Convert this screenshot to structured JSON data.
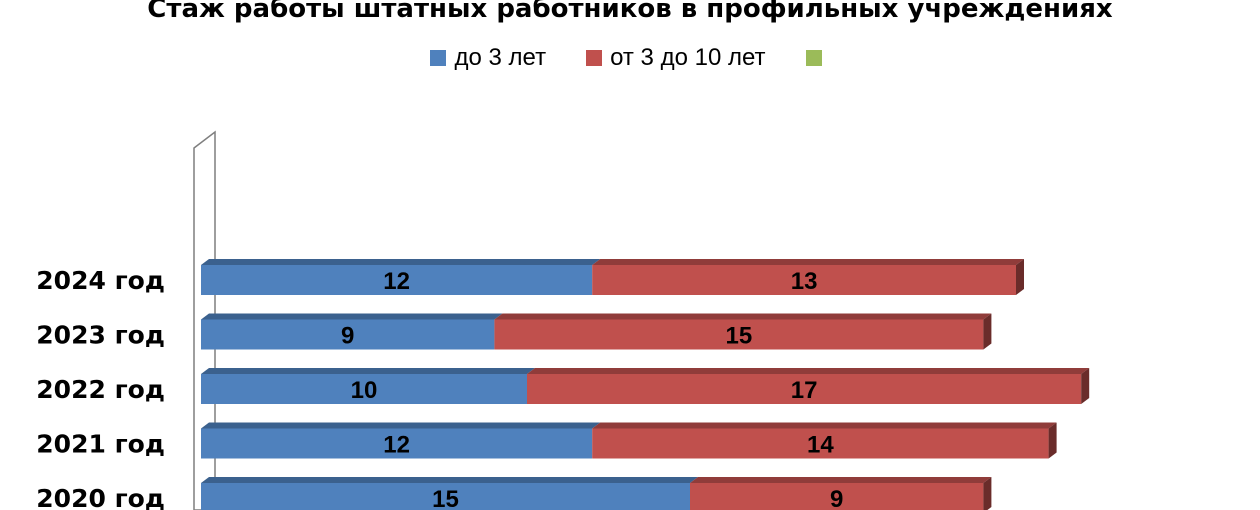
{
  "chart_data": {
    "type": "bar",
    "orientation": "horizontal",
    "stacked": true,
    "title": "Стаж работы  штатных работников  в профильных учреждениях",
    "categories": [
      "2024 год",
      "2023 год",
      "2022 год",
      "2021 год",
      "2020 год"
    ],
    "series": [
      {
        "name": "до  3 лет",
        "color": "#4F81BD",
        "values": [
          12,
          9,
          10,
          12,
          15
        ]
      },
      {
        "name": "от 3 до 10 лет",
        "color": "#C0504D",
        "values": [
          13,
          15,
          17,
          14,
          9
        ]
      },
      {
        "name": "",
        "color": "#9BBB59",
        "values": [
          0,
          0,
          0,
          0,
          0
        ]
      }
    ],
    "xlim": [
      0,
      30
    ],
    "legend_position": "top",
    "grid": false
  }
}
